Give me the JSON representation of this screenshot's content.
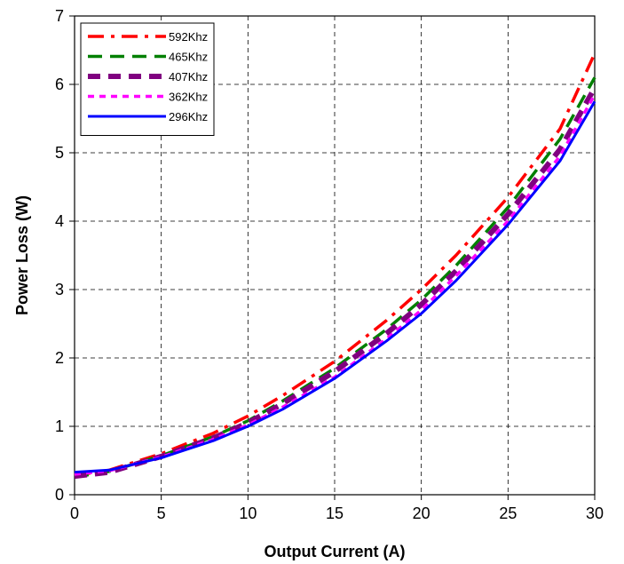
{
  "chart_data": {
    "type": "line",
    "title": "",
    "xlabel": "Output Current (A)",
    "ylabel": "Power Loss (W)",
    "xlim": [
      0,
      30
    ],
    "ylim": [
      0,
      7
    ],
    "xticks": [
      "0",
      "5",
      "10",
      "15",
      "20",
      "25",
      "30"
    ],
    "yticks": [
      "0",
      "1",
      "2",
      "3",
      "4",
      "5",
      "6",
      "7"
    ],
    "grid": true,
    "legend_position": "top-left",
    "series": [
      {
        "name": "592Khz",
        "color": "#ff0000",
        "dash": "dash-dot",
        "x": [
          0,
          2,
          5,
          8,
          10,
          12,
          15,
          18,
          20,
          22,
          25,
          28,
          30
        ],
        "y": [
          0.28,
          0.36,
          0.6,
          0.9,
          1.15,
          1.45,
          1.95,
          2.55,
          3.0,
          3.5,
          4.35,
          5.35,
          6.45
        ]
      },
      {
        "name": "465Khz",
        "color": "#008000",
        "dash": "long-dash",
        "x": [
          0,
          2,
          5,
          8,
          10,
          12,
          15,
          18,
          20,
          22,
          25,
          28,
          30
        ],
        "y": [
          0.26,
          0.34,
          0.57,
          0.85,
          1.08,
          1.37,
          1.85,
          2.42,
          2.85,
          3.35,
          4.2,
          5.2,
          6.1
        ]
      },
      {
        "name": "407Khz",
        "color": "#800080",
        "dash": "thick-dash",
        "x": [
          0,
          2,
          5,
          8,
          10,
          12,
          15,
          18,
          20,
          22,
          25,
          28,
          30
        ],
        "y": [
          0.27,
          0.33,
          0.56,
          0.83,
          1.05,
          1.33,
          1.8,
          2.36,
          2.78,
          3.27,
          4.1,
          5.05,
          5.95
        ]
      },
      {
        "name": "362Khz",
        "color": "#ff00ff",
        "dash": "short-dash",
        "x": [
          0,
          2,
          5,
          8,
          10,
          12,
          15,
          18,
          20,
          22,
          25,
          28,
          30
        ],
        "y": [
          0.3,
          0.35,
          0.55,
          0.81,
          1.02,
          1.28,
          1.72,
          2.28,
          2.7,
          3.2,
          4.0,
          4.95,
          5.85
        ]
      },
      {
        "name": "296Khz",
        "color": "#0000ff",
        "dash": "solid",
        "x": [
          0,
          2,
          5,
          8,
          10,
          12,
          15,
          18,
          20,
          22,
          25,
          28,
          30
        ],
        "y": [
          0.33,
          0.36,
          0.54,
          0.79,
          1.0,
          1.25,
          1.7,
          2.25,
          2.65,
          3.13,
          3.95,
          4.88,
          5.75
        ]
      }
    ]
  }
}
